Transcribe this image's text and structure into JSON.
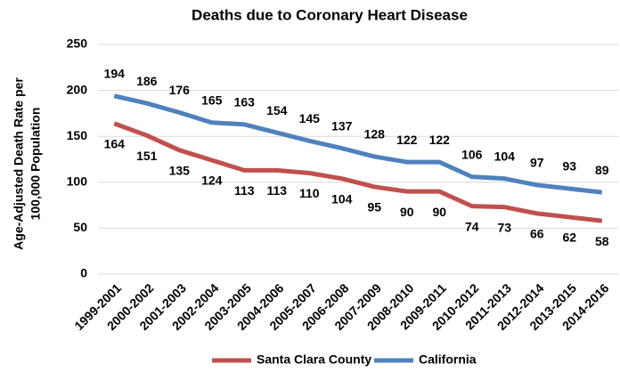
{
  "chart_data": {
    "type": "line",
    "title": "Deaths due to Coronary Heart Disease",
    "ylabel": [
      "Age-Adjusted Death Rate per",
      "100,000 Population"
    ],
    "categories": [
      "1999-2001",
      "2000-2002",
      "2001-2003",
      "2002-2004",
      "2003-2005",
      "2004-2006",
      "2005-2007",
      "2006-2008",
      "2007-2009",
      "2008-2010",
      "2009-2011",
      "2010-2012",
      "2011-2013",
      "2012-2014",
      "2013-2015",
      "2014-2016"
    ],
    "series": [
      {
        "name": "Santa Clara County",
        "color": "#c0504d",
        "label_side": "below",
        "values": [
          164,
          151,
          135,
          124,
          113,
          113,
          110,
          104,
          95,
          90,
          90,
          74,
          73,
          66,
          62,
          58
        ]
      },
      {
        "name": "California",
        "color": "#4f81bd",
        "label_side": "above",
        "values": [
          194,
          186,
          176,
          165,
          163,
          154,
          145,
          137,
          128,
          122,
          122,
          106,
          104,
          97,
          93,
          89
        ]
      }
    ],
    "ylim": [
      0,
      250
    ],
    "yticks": [
      0,
      50,
      100,
      150,
      200,
      250
    ],
    "grid": true,
    "legend": "bottom"
  }
}
